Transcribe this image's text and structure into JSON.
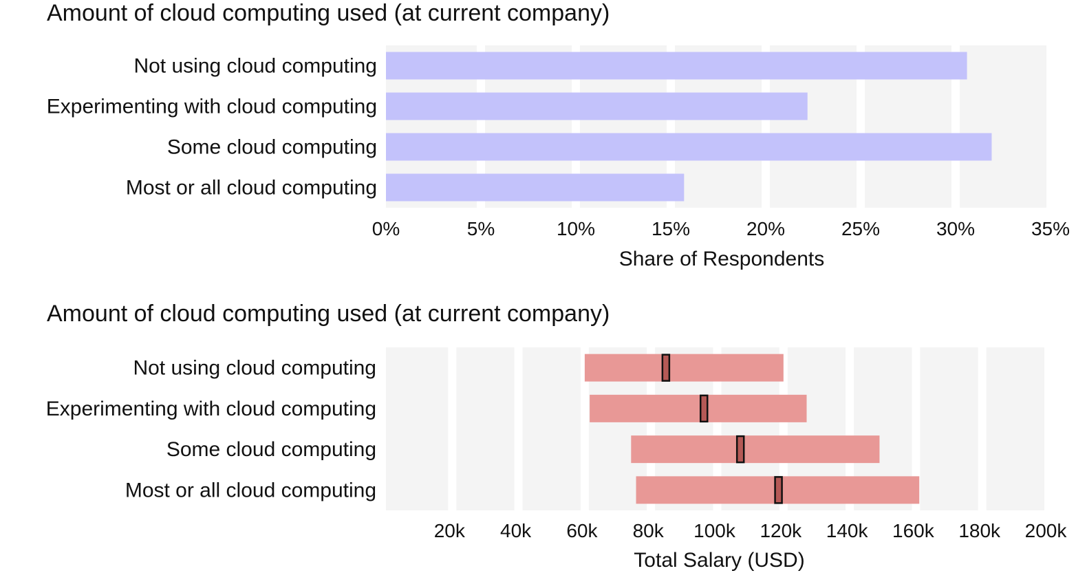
{
  "chart_data": [
    {
      "type": "bar",
      "title": "Amount of cloud computing used (at current company)",
      "categories": [
        "Not using cloud computing",
        "Experimenting with cloud computing",
        "Some cloud computing",
        "Most or all cloud computing"
      ],
      "values": [
        30.6,
        22.2,
        31.9,
        15.7
      ],
      "xlabel": "Share of Respondents",
      "xlim": [
        0,
        35
      ],
      "ticks": [
        0,
        5,
        10,
        15,
        20,
        25,
        30,
        35
      ],
      "tick_labels": [
        "0%",
        "5%",
        "10%",
        "15%",
        "20%",
        "25%",
        "30%",
        "35%"
      ],
      "bar_color": "#c3c2fb",
      "band_color": "#f4f4f4",
      "grid": true
    },
    {
      "type": "range-bar",
      "title": "Amount of cloud computing used (at current company)",
      "categories": [
        "Not using cloud computing",
        "Experimenting with cloud computing",
        "Some cloud computing",
        "Most or all cloud computing"
      ],
      "low": [
        60000,
        61500,
        74000,
        75500
      ],
      "high": [
        120000,
        127000,
        149000,
        161000
      ],
      "median": [
        84500,
        96000,
        107000,
        118500
      ],
      "xlabel": "Total Salary (USD)",
      "xlim": [
        0,
        200000
      ],
      "ticks": [
        20000,
        40000,
        60000,
        80000,
        100000,
        120000,
        140000,
        160000,
        180000,
        200000
      ],
      "tick_labels": [
        "20k",
        "40k",
        "60k",
        "80k",
        "100k",
        "120k",
        "140k",
        "160k",
        "180k",
        "200k"
      ],
      "bar_color": "#e89896",
      "median_color": "#b55956",
      "band_color": "#f4f4f4",
      "grid": true
    }
  ]
}
